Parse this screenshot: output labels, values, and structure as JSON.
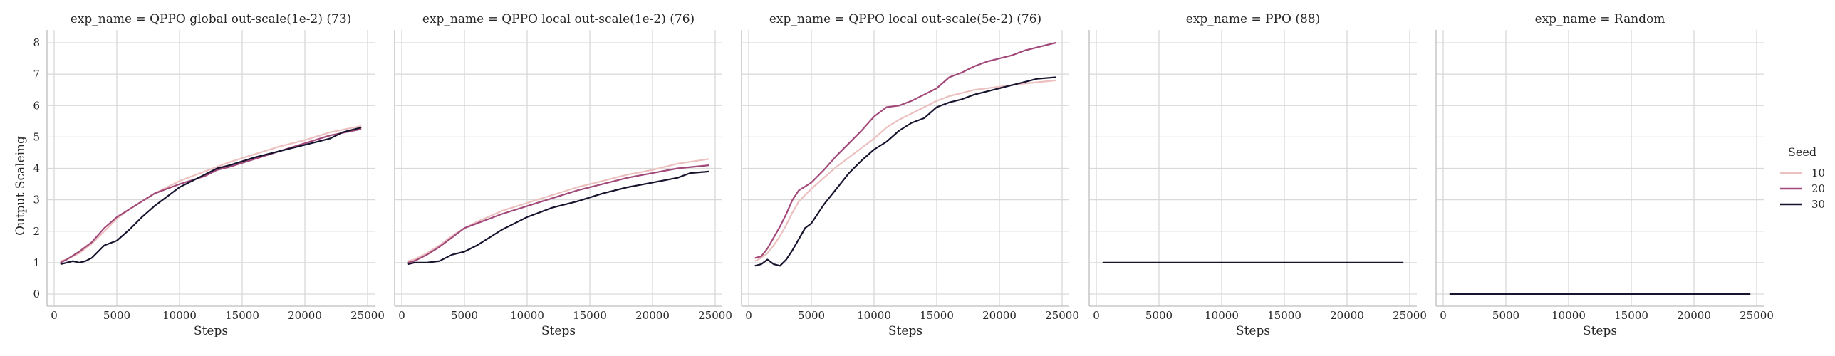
{
  "chart_data": {
    "type": "line",
    "ylabel": "Output Scaleing",
    "xlabel": "Steps",
    "xlim": [
      0,
      25000
    ],
    "ylim": [
      0,
      8
    ],
    "xticks": [
      0,
      5000,
      10000,
      15000,
      20000,
      25000
    ],
    "yticks": [
      0,
      1,
      2,
      3,
      4,
      5,
      6,
      7,
      8
    ],
    "grid": true,
    "legend": {
      "title": "Seed",
      "placement": "right",
      "entries": [
        {
          "label": "10",
          "color": "#ebc0bf"
        },
        {
          "label": "20",
          "color": "#a2497a"
        },
        {
          "label": "30",
          "color": "#17142f"
        }
      ]
    },
    "panels": [
      {
        "title": "exp_name = QPPO global out-scale(1e-2) (73)",
        "series": [
          {
            "name": "10",
            "color": "#ebc0bf",
            "x": [
              500,
              1000,
              2000,
              3000,
              4000,
              5000,
              6000,
              7000,
              8000,
              9000,
              10000,
              12000,
              14000,
              16000,
              18000,
              20000,
              22000,
              24500
            ],
            "y": [
              1.05,
              1.1,
              1.3,
              1.6,
              2.0,
              2.4,
              2.7,
              2.95,
              3.2,
              3.4,
              3.6,
              3.9,
              4.2,
              4.45,
              4.7,
              4.9,
              5.15,
              5.35
            ]
          },
          {
            "name": "20",
            "color": "#a2497a",
            "x": [
              500,
              1000,
              2000,
              3000,
              4000,
              5000,
              6000,
              7000,
              8000,
              9000,
              10000,
              12000,
              13000,
              14000,
              16000,
              18000,
              20000,
              22000,
              24500
            ],
            "y": [
              1.0,
              1.1,
              1.35,
              1.65,
              2.1,
              2.45,
              2.7,
              2.95,
              3.2,
              3.35,
              3.5,
              3.75,
              3.95,
              4.05,
              4.3,
              4.55,
              4.8,
              5.05,
              5.25
            ]
          },
          {
            "name": "30",
            "color": "#17142f",
            "x": [
              500,
              1000,
              1500,
              2000,
              2500,
              3000,
              4000,
              5000,
              6000,
              7000,
              8000,
              9000,
              10000,
              11000,
              12000,
              13000,
              14000,
              16000,
              18000,
              20000,
              22000,
              23000,
              24500
            ],
            "y": [
              0.95,
              1.0,
              1.05,
              1.0,
              1.05,
              1.15,
              1.55,
              1.7,
              2.05,
              2.45,
              2.8,
              3.1,
              3.4,
              3.6,
              3.8,
              4.0,
              4.1,
              4.35,
              4.55,
              4.75,
              4.95,
              5.15,
              5.3
            ]
          }
        ]
      },
      {
        "title": "exp_name = QPPO local out-scale(1e-2) (76)",
        "series": [
          {
            "name": "10",
            "color": "#ebc0bf",
            "x": [
              500,
              1000,
              2000,
              3000,
              4000,
              5000,
              6000,
              8000,
              10000,
              12000,
              14000,
              16000,
              18000,
              20000,
              22000,
              24500
            ],
            "y": [
              1.05,
              1.1,
              1.3,
              1.55,
              1.85,
              2.1,
              2.3,
              2.65,
              2.9,
              3.15,
              3.4,
              3.6,
              3.8,
              3.95,
              4.15,
              4.3
            ]
          },
          {
            "name": "20",
            "color": "#a2497a",
            "x": [
              500,
              1000,
              2000,
              3000,
              4000,
              5000,
              6000,
              8000,
              10000,
              12000,
              14000,
              16000,
              18000,
              20000,
              22000,
              24500
            ],
            "y": [
              1.0,
              1.05,
              1.25,
              1.5,
              1.8,
              2.1,
              2.25,
              2.55,
              2.8,
              3.05,
              3.3,
              3.5,
              3.7,
              3.85,
              4.0,
              4.1
            ]
          },
          {
            "name": "30",
            "color": "#17142f",
            "x": [
              500,
              1000,
              2000,
              3000,
              4000,
              5000,
              6000,
              7000,
              8000,
              9000,
              10000,
              12000,
              14000,
              16000,
              18000,
              20000,
              22000,
              23000,
              24500
            ],
            "y": [
              0.95,
              1.0,
              1.0,
              1.05,
              1.25,
              1.35,
              1.55,
              1.8,
              2.05,
              2.25,
              2.45,
              2.75,
              2.95,
              3.2,
              3.4,
              3.55,
              3.7,
              3.85,
              3.9
            ]
          }
        ]
      },
      {
        "title": "exp_name = QPPO local out-scale(5e-2) (76)",
        "series": [
          {
            "name": "10",
            "color": "#ebc0bf",
            "x": [
              500,
              1000,
              1500,
              2000,
              2500,
              3000,
              3500,
              4000,
              5000,
              6000,
              7000,
              8000,
              9000,
              10000,
              11000,
              12000,
              13000,
              14000,
              15000,
              16000,
              17000,
              18000,
              20000,
              22000,
              24500
            ],
            "y": [
              1.05,
              1.15,
              1.3,
              1.55,
              1.85,
              2.2,
              2.6,
              2.95,
              3.35,
              3.7,
              4.05,
              4.35,
              4.65,
              4.95,
              5.3,
              5.55,
              5.75,
              5.95,
              6.15,
              6.3,
              6.4,
              6.5,
              6.6,
              6.7,
              6.8
            ]
          },
          {
            "name": "20",
            "color": "#a2497a",
            "x": [
              500,
              1000,
              1500,
              2000,
              2500,
              3000,
              3500,
              4000,
              5000,
              6000,
              7000,
              8000,
              9000,
              10000,
              11000,
              12000,
              13000,
              14000,
              15000,
              16000,
              17000,
              18000,
              19000,
              20000,
              21000,
              22000,
              23000,
              24500
            ],
            "y": [
              1.15,
              1.2,
              1.45,
              1.8,
              2.15,
              2.55,
              3.0,
              3.3,
              3.55,
              3.95,
              4.4,
              4.8,
              5.2,
              5.65,
              5.95,
              6.0,
              6.15,
              6.35,
              6.55,
              6.9,
              7.05,
              7.25,
              7.4,
              7.5,
              7.6,
              7.75,
              7.85,
              8.0
            ]
          },
          {
            "name": "30",
            "color": "#17142f",
            "x": [
              500,
              1000,
              1500,
              2000,
              2500,
              3000,
              3500,
              4000,
              4500,
              5000,
              6000,
              7000,
              8000,
              9000,
              10000,
              11000,
              12000,
              13000,
              14000,
              15000,
              16000,
              17000,
              18000,
              19000,
              20000,
              21000,
              22000,
              23000,
              24500
            ],
            "y": [
              0.9,
              0.95,
              1.1,
              0.95,
              0.9,
              1.1,
              1.4,
              1.75,
              2.1,
              2.25,
              2.85,
              3.35,
              3.85,
              4.25,
              4.6,
              4.85,
              5.2,
              5.45,
              5.6,
              5.95,
              6.1,
              6.2,
              6.35,
              6.45,
              6.55,
              6.65,
              6.75,
              6.85,
              6.9
            ]
          }
        ]
      },
      {
        "title": "exp_name = PPO (88)",
        "series": [
          {
            "name": "30",
            "color": "#17142f",
            "x": [
              500,
              24500
            ],
            "y": [
              1.0,
              1.0
            ]
          }
        ]
      },
      {
        "title": "exp_name = Random",
        "series": [
          {
            "name": "30",
            "color": "#17142f",
            "x": [
              500,
              24500
            ],
            "y": [
              0.0,
              0.0
            ]
          }
        ]
      }
    ]
  }
}
